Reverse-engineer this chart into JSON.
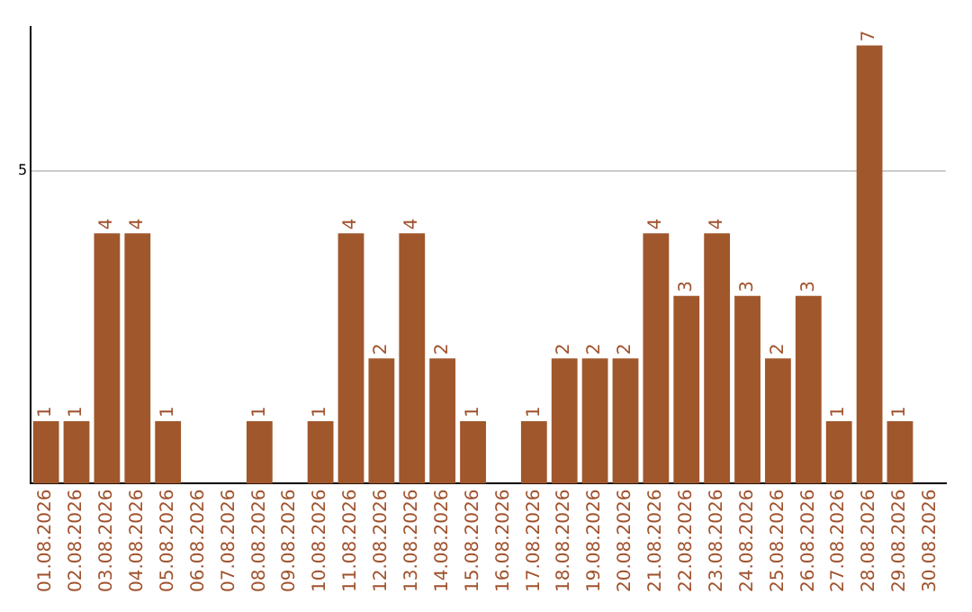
{
  "chart_data": {
    "type": "bar",
    "categories": [
      "01.08.2026",
      "02.08.2026",
      "03.08.2026",
      "04.08.2026",
      "05.08.2026",
      "06.08.2026",
      "07.08.2026",
      "08.08.2026",
      "09.08.2026",
      "10.08.2026",
      "11.08.2026",
      "12.08.2026",
      "13.08.2026",
      "14.08.2026",
      "15.08.2026",
      "16.08.2026",
      "17.08.2026",
      "18.08.2026",
      "19.08.2026",
      "20.08.2026",
      "21.08.2026",
      "22.08.2026",
      "23.08.2026",
      "24.08.2026",
      "25.08.2026",
      "26.08.2026",
      "27.08.2026",
      "28.08.2026",
      "29.08.2026",
      "30.08.2026"
    ],
    "values": [
      1,
      1,
      4,
      4,
      1,
      0,
      0,
      1,
      0,
      1,
      4,
      2,
      4,
      2,
      1,
      0,
      1,
      2,
      2,
      2,
      4,
      3,
      4,
      3,
      2,
      3,
      1,
      7,
      1,
      0
    ],
    "value_labels": [
      "1",
      "1",
      "4",
      "4",
      "1",
      null,
      null,
      "1",
      null,
      "1",
      "4",
      "2",
      "4",
      "2",
      "1",
      null,
      "1",
      "2",
      "2",
      "2",
      "4",
      "3",
      "4",
      "3",
      "2",
      "3",
      "1",
      "7",
      "1",
      null
    ],
    "color": "#a0572b",
    "ylim": [
      0,
      7.3
    ],
    "yticks": [
      5
    ],
    "grid": "y"
  }
}
